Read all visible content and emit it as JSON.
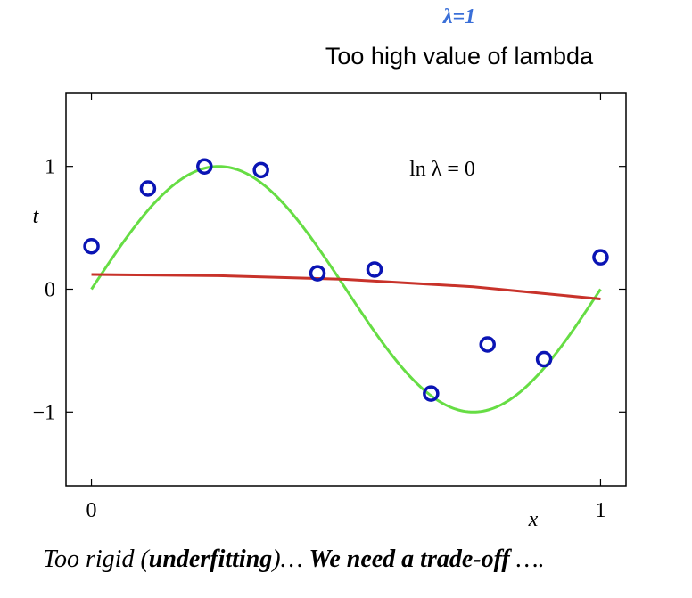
{
  "header": {
    "lambda_label": "λ=1",
    "subtitle": "Too high value of lambda"
  },
  "caption": {
    "part1": "Too rigid (",
    "part2": "underfitting",
    "part3": ")… ",
    "part4": "We need a trade-off",
    "part5": " …."
  },
  "chart_data": {
    "type": "scatter",
    "annotation": "ln λ = 0",
    "xlabel": "x",
    "ylabel": "t",
    "xlim": [
      -0.05,
      1.05
    ],
    "ylim": [
      -1.6,
      1.6
    ],
    "xticks": [
      0,
      1
    ],
    "yticks": [
      -1,
      0,
      1
    ],
    "grid": false,
    "colors": {
      "points": "#0a14b4",
      "true_curve": "#66dd44",
      "fit_curve": "#c8322a"
    },
    "points": {
      "x": [
        0.0,
        0.111,
        0.222,
        0.333,
        0.444,
        0.556,
        0.667,
        0.778,
        0.889,
        1.0
      ],
      "y": [
        0.35,
        0.82,
        1.0,
        0.97,
        0.13,
        0.16,
        -0.85,
        -0.45,
        -0.57,
        0.26
      ]
    },
    "true_curve": {
      "function": "sin(2*pi*x)",
      "x_range": [
        0,
        1
      ]
    },
    "fit_curve": {
      "x": [
        0.0,
        0.25,
        0.5,
        0.75,
        1.0
      ],
      "y": [
        0.12,
        0.11,
        0.08,
        0.02,
        -0.08
      ]
    }
  }
}
